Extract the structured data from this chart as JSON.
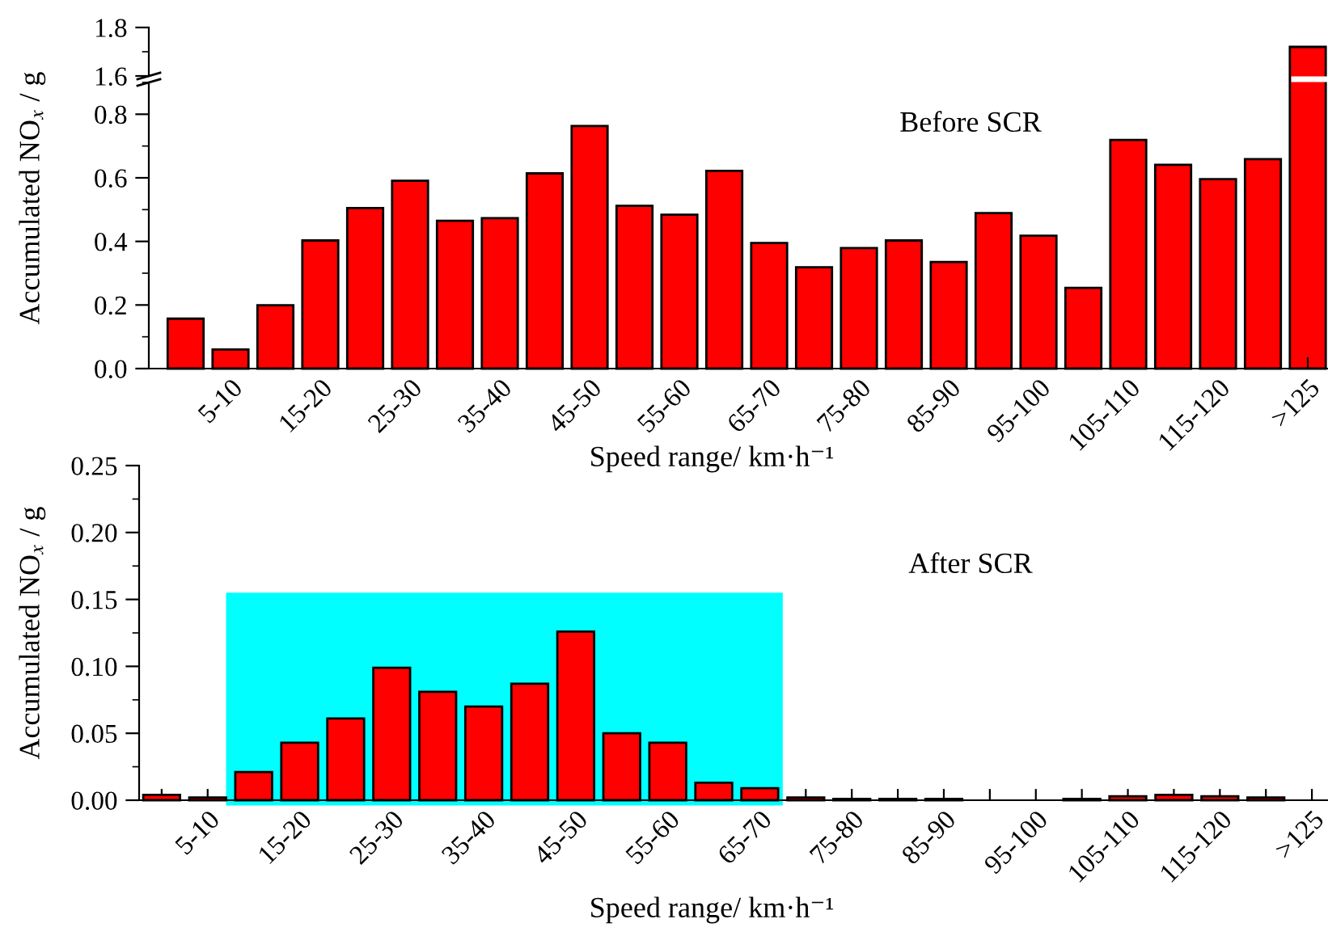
{
  "chart_data": [
    {
      "type": "bar",
      "categories": [
        null,
        null,
        null,
        null,
        null,
        null,
        null,
        null,
        null,
        null,
        null,
        null,
        null,
        null,
        null,
        null,
        null,
        null,
        null,
        null,
        null,
        null,
        null,
        null,
        null,
        null
      ],
      "values": [
        null,
        null,
        null,
        null,
        null,
        null,
        null,
        null,
        null,
        null,
        null,
        null,
        null,
        null,
        null,
        null,
        null,
        null,
        null,
        null,
        null,
        null,
        null,
        null,
        null,
        1.72
      ],
      "color": "#ff0000",
      "ylim": [
        1.6,
        1.8
      ],
      "yticks": [
        1.6,
        1.8
      ],
      "tick_labels": "y",
      "grid": false,
      "legend": false
    },
    {
      "type": "bar",
      "categories": [
        null,
        "5-10",
        null,
        "15-20",
        null,
        "25-30",
        null,
        "35-40",
        null,
        "45-50",
        null,
        "55-60",
        null,
        "65-70",
        null,
        "75-80",
        null,
        "85-90",
        null,
        "95-100",
        null,
        "105-110",
        null,
        "115-120",
        null,
        ">125"
      ],
      "values": [
        0.157,
        0.06,
        0.199,
        0.403,
        0.505,
        0.591,
        0.465,
        0.473,
        0.614,
        0.763,
        0.512,
        0.484,
        0.622,
        0.395,
        0.319,
        0.379,
        0.403,
        0.335,
        0.489,
        0.418,
        0.254,
        0.719,
        0.641,
        0.596,
        0.659,
        null
      ],
      "color": "#ff0000",
      "xlabel": "Speed range/ km·h⁻¹",
      "ylabel": "Accumulated NO$_{x}$ / g",
      "ylim": [
        0,
        0.9
      ],
      "yticks": [
        {
          "value": 0,
          "label": "0.0"
        },
        0.2,
        0.4,
        0.6,
        0.8
      ],
      "annotations": [
        "Before SCR"
      ],
      "grid": false,
      "legend": false
    },
    {
      "type": "bar",
      "categories": [
        null,
        "5-10",
        null,
        "15-20",
        null,
        "25-30",
        null,
        "35-40",
        null,
        "45-50",
        null,
        "55-60",
        null,
        "65-70",
        null,
        "75-80",
        null,
        "85-90",
        null,
        "95-100",
        null,
        "105-110",
        null,
        "115-120",
        null,
        ">125"
      ],
      "values": [
        0.004,
        0.002,
        0.021,
        0.043,
        0.061,
        0.099,
        0.081,
        0.07,
        0.087,
        0.126,
        0.05,
        0.043,
        0.013,
        0.009,
        0.002,
        0.001,
        0.001,
        0.001,
        0,
        0,
        0.001,
        0.003,
        0.004,
        0.003,
        0.002,
        0
      ],
      "color": "#ff0000",
      "xlabel": "Speed range/ km·h⁻¹",
      "ylabel": "Accumulated NO$_{x}$ / g",
      "ylim": [
        0,
        0.25
      ],
      "yticks": [
        {
          "value": 0,
          "label": "0.00"
        },
        {
          "value": 0.05,
          "label": "0.05"
        },
        {
          "value": 0.1,
          "label": "0.10"
        },
        {
          "value": 0.15,
          "label": "0.15"
        },
        {
          "value": 0.2,
          "label": "0.20"
        },
        0.25
      ],
      "annotations": [
        "After SCR"
      ],
      "grid": false,
      "legend": false
    }
  ]
}
